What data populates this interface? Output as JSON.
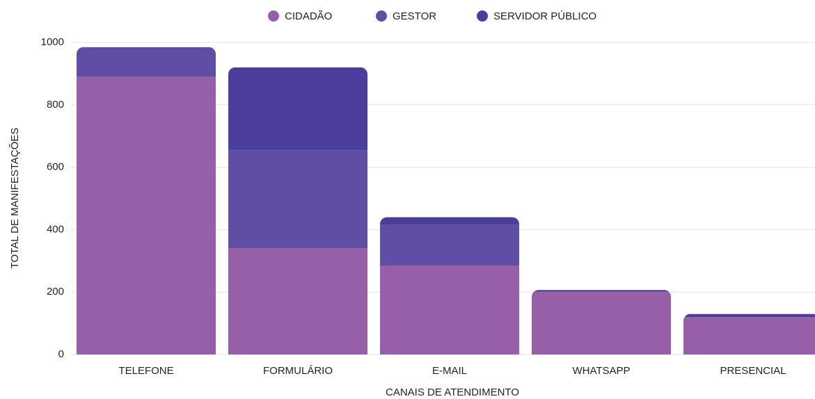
{
  "chart_data": {
    "type": "stacked_bar",
    "x_label": "CANAIS DE ATENDIMENTO",
    "y_label": "TOTAL DE MANIFESTAÇÕES",
    "categories": [
      "TELEFONE",
      "FORMULÁRIO",
      "E-MAIL",
      "WHATSAPP",
      "PRESENCIAL"
    ],
    "series": [
      {
        "name": "CIDADÃO",
        "color": "#985fa9",
        "values": [
          890,
          340,
          285,
          200,
          120
        ]
      },
      {
        "name": "GESTOR",
        "color": "#5f4ea3",
        "values": [
          95,
          315,
          130,
          7,
          0
        ]
      },
      {
        "name": "SERVIDOR PÚBLICO",
        "color": "#4a3d9b",
        "values": [
          0,
          265,
          25,
          0,
          10
        ]
      }
    ],
    "ylim": [
      0,
      1000
    ],
    "yticks": [
      0,
      200,
      400,
      600,
      800,
      1000
    ],
    "grid": true,
    "legend": "top"
  }
}
